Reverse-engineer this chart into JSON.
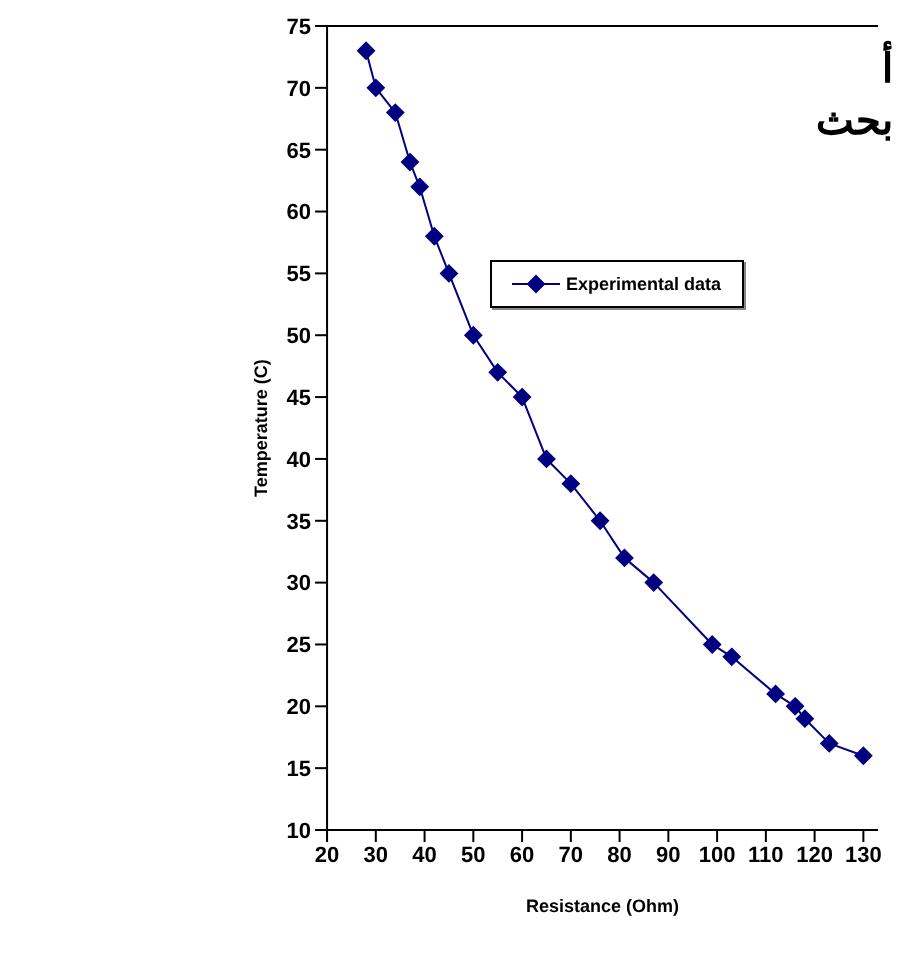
{
  "chart_data": {
    "type": "line",
    "xlabel": "Resistance (Ohm)",
    "ylabel": "Temperature (C)",
    "annotations": [
      "أ",
      "بحث"
    ],
    "x": [
      28,
      30,
      34,
      37,
      39,
      42,
      45,
      50,
      55,
      60,
      65,
      70,
      76,
      81,
      87,
      99,
      103,
      112,
      116,
      118,
      123,
      130
    ],
    "series": [
      {
        "name": "Experimental data",
        "color": "#000080",
        "values": [
          73,
          70,
          68,
          64,
          62,
          58,
          55,
          50,
          47,
          45,
          40,
          38,
          35,
          32,
          30,
          25,
          24,
          21,
          20,
          19,
          17,
          16
        ]
      }
    ],
    "xlim": [
      20,
      133
    ],
    "xticks": [
      20,
      30,
      40,
      50,
      60,
      70,
      80,
      90,
      100,
      110,
      120,
      130
    ],
    "ylim": [
      10,
      75
    ],
    "yticks": [
      10,
      15,
      20,
      25,
      30,
      35,
      40,
      45,
      50,
      55,
      60,
      65,
      70,
      75
    ],
    "grid": false,
    "legend": "top",
    "marker": "diamond",
    "line_style": "solid"
  }
}
